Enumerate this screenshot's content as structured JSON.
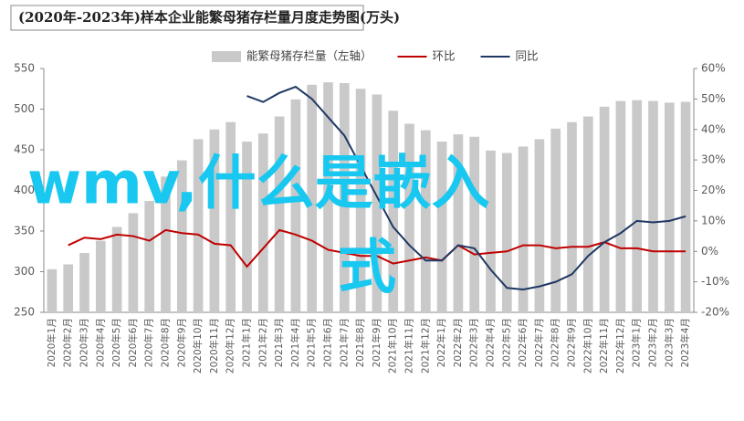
{
  "chart_data": {
    "type": "bar_line",
    "title": "(2020年-2023年)样本企业能繁母猪存栏量月度走势图(万头)",
    "categories": [
      "2020年1月",
      "2020年2月",
      "2020年3月",
      "2020年4月",
      "2020年5月",
      "2020年6月",
      "2020年7月",
      "2020年8月",
      "2020年9月",
      "2020年10月",
      "2020年11月",
      "2020年12月",
      "2021年1月",
      "2021年2月",
      "2021年3月",
      "2021年4月",
      "2021年5月",
      "2021年6月",
      "2021年7月",
      "2021年8月",
      "2021年9月",
      "2021年10月",
      "2021年11月",
      "2021年12月",
      "2022年1月",
      "2022年2月",
      "2022年3月",
      "2022年4月",
      "2022年5月",
      "2022年6月",
      "2022年7月",
      "2022年8月",
      "2022年9月",
      "2022年10月",
      "2022年11月",
      "2022年12月",
      "2023年1月",
      "2023年2月",
      "2023年3月",
      "2023年4月"
    ],
    "series": [
      {
        "name": "能繁母猪存栏量（左轴）",
        "color": "#c9c9c9",
        "values": [
          303,
          309,
          323,
          338,
          355,
          372,
          387,
          417,
          437,
          463,
          475,
          484,
          460,
          470,
          491,
          512,
          530,
          533,
          532,
          525,
          518,
          498,
          482,
          474,
          460,
          469,
          466,
          449,
          446,
          454,
          463,
          476,
          484,
          491,
          503,
          510,
          511,
          510,
          508,
          509
        ]
      },
      {
        "name": "环比",
        "color": "#c00000",
        "axis": "y2",
        "values": [
          null,
          2,
          4.5,
          4,
          5.5,
          5,
          3.5,
          7,
          6,
          5.5,
          2.5,
          2,
          -5,
          1,
          7,
          5.5,
          3.5,
          0.5,
          -0.5,
          -1.5,
          -1.5,
          -4,
          -3,
          -2,
          -3,
          2,
          -1,
          -0.5,
          0,
          2,
          2,
          1,
          1.5,
          1.5,
          3,
          1,
          1,
          0,
          0,
          0
        ]
      },
      {
        "name": "同比",
        "color": "#1f3864",
        "axis": "y2",
        "values": [
          null,
          null,
          null,
          null,
          null,
          null,
          null,
          null,
          null,
          null,
          null,
          null,
          51,
          49,
          52,
          54,
          50,
          44,
          38,
          28,
          18,
          8,
          2,
          -3,
          -3,
          2,
          1,
          -6,
          -12,
          -12.5,
          -11.5,
          -10,
          -7.5,
          -1.5,
          3,
          6,
          10,
          9.5,
          10,
          11.5
        ]
      }
    ],
    "ylim": [
      250,
      550
    ],
    "yticks": [
      250,
      300,
      350,
      400,
      450,
      500,
      550
    ],
    "y2lim": [
      -20,
      60
    ],
    "y2ticks": [
      {
        "value": -20,
        "label": "-20%"
      },
      {
        "value": -10,
        "label": "-10%"
      },
      {
        "value": 0,
        "label": "0%"
      },
      {
        "value": 10,
        "label": "10%"
      },
      {
        "value": 20,
        "label": "20%"
      },
      {
        "value": 30,
        "label": "30%"
      },
      {
        "value": 40,
        "label": "40%"
      },
      {
        "value": 50,
        "label": "50%"
      },
      {
        "value": 60,
        "label": "60%"
      }
    ],
    "legend": "top"
  },
  "overlay": {
    "lines": [
      "wmv,什么是嵌入",
      "式"
    ]
  }
}
